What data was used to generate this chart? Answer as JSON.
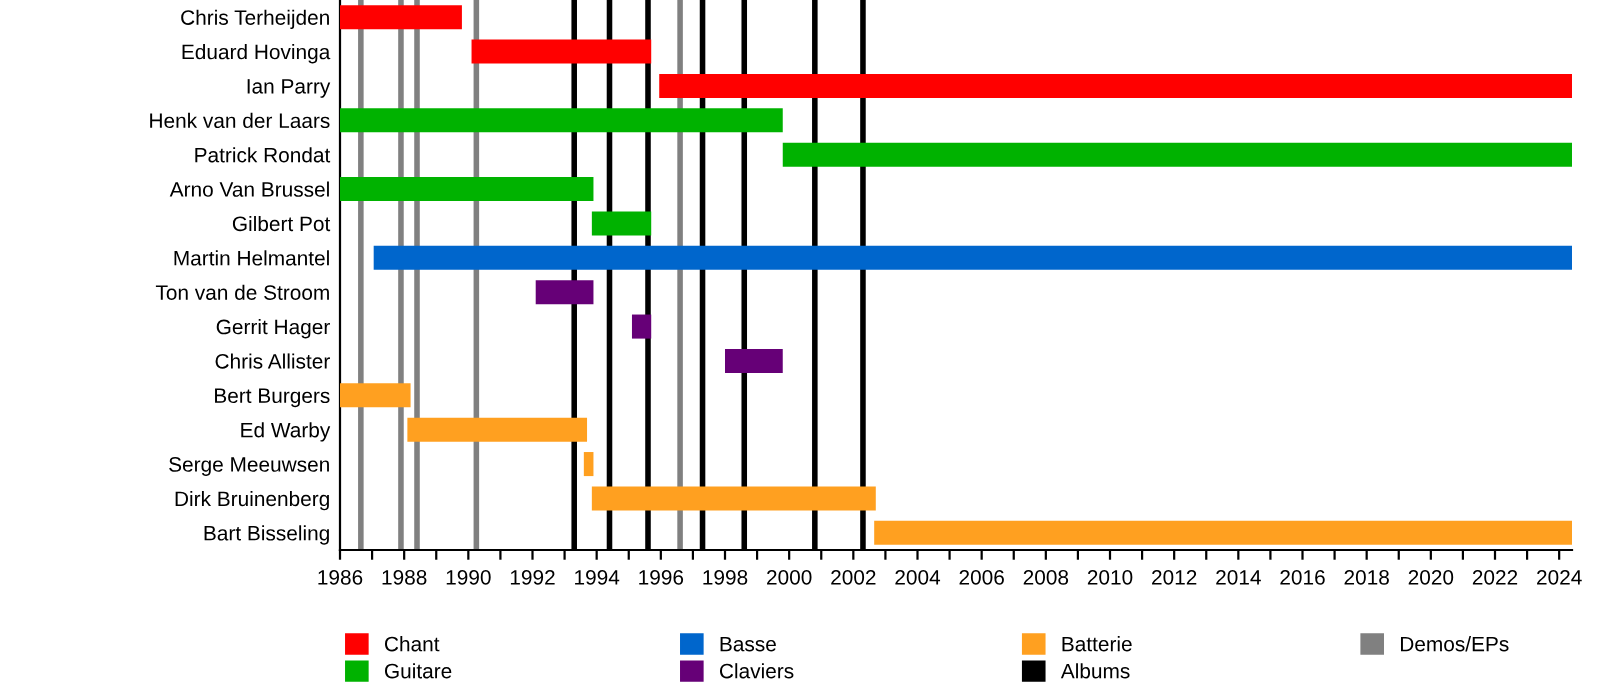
{
  "chart_data": {
    "type": "bar",
    "orientation": "horizontal",
    "legend": "bottom",
    "grid": false,
    "categories": [
      "Chris Terheijden",
      "Eduard Hovinga",
      "Ian Parry",
      "Henk van der Laars",
      "Patrick Rondat",
      "Arno Van Brussel",
      "Gilbert Pot",
      "Martin Helmantel",
      "Ton van de Stroom",
      "Gerrit Hager",
      "Chris Allister",
      "Bert Burgers",
      "Ed Warby",
      "Serge Meeuwsen",
      "Dirk Bruinenberg",
      "Bart Bisseling"
    ],
    "series": [
      {
        "name": "Chant",
        "color": "#ff0000",
        "base": [
          1986,
          1990.1,
          1995.95,
          null,
          null,
          null,
          null,
          null,
          null,
          null,
          null,
          null,
          null,
          null,
          null,
          null
        ],
        "values": [
          3.8,
          5.6,
          28.45,
          null,
          null,
          null,
          null,
          null,
          null,
          null,
          null,
          null,
          null,
          null,
          null,
          null
        ]
      },
      {
        "name": "Guitare",
        "color": "#00b200",
        "base": [
          null,
          null,
          null,
          1986,
          1999.8,
          1986,
          1993.85,
          null,
          null,
          null,
          null,
          null,
          null,
          null,
          null,
          null
        ],
        "values": [
          null,
          null,
          null,
          13.8,
          24.6,
          7.9,
          1.85,
          null,
          null,
          null,
          null,
          null,
          null,
          null,
          null,
          null
        ]
      },
      {
        "name": "Basse",
        "color": "#0066cc",
        "base": [
          null,
          null,
          null,
          null,
          null,
          null,
          null,
          1987.05,
          null,
          null,
          null,
          null,
          null,
          null,
          null,
          null
        ],
        "values": [
          null,
          null,
          null,
          null,
          null,
          null,
          null,
          37.35,
          null,
          null,
          null,
          null,
          null,
          null,
          null,
          null
        ]
      },
      {
        "name": "Claviers",
        "color": "#660077",
        "base": [
          null,
          null,
          null,
          null,
          null,
          null,
          null,
          null,
          1992.1,
          1995.1,
          1998.0,
          null,
          null,
          null,
          null,
          null
        ],
        "values": [
          null,
          null,
          null,
          null,
          null,
          null,
          null,
          null,
          1.8,
          0.6,
          1.8,
          null,
          null,
          null,
          null,
          null
        ]
      },
      {
        "name": "Batterie",
        "color": "#ffa020",
        "base": [
          null,
          null,
          null,
          null,
          null,
          null,
          null,
          null,
          null,
          null,
          null,
          1986,
          1988.1,
          1993.6,
          1993.85,
          2002.65
        ],
        "values": [
          null,
          null,
          null,
          null,
          null,
          null,
          null,
          null,
          null,
          null,
          null,
          2.2,
          5.6,
          0.3,
          8.85,
          21.75
        ]
      }
    ],
    "ref_lines": [
      {
        "axis": "x",
        "value": 1993.3,
        "label": "Albums",
        "color": "#000000"
      },
      {
        "axis": "x",
        "value": 1994.4,
        "color": "#000000"
      },
      {
        "axis": "x",
        "value": 1995.6,
        "color": "#000000"
      },
      {
        "axis": "x",
        "value": 1997.3,
        "color": "#000000"
      },
      {
        "axis": "x",
        "value": 1998.6,
        "color": "#000000"
      },
      {
        "axis": "x",
        "value": 2000.8,
        "color": "#000000"
      },
      {
        "axis": "x",
        "value": 2002.3,
        "color": "#000000"
      },
      {
        "axis": "x",
        "value": 1986.65,
        "label": "Demos/EPs",
        "color": "#808080"
      },
      {
        "axis": "x",
        "value": 1987.9,
        "color": "#808080"
      },
      {
        "axis": "x",
        "value": 1988.4,
        "color": "#808080"
      },
      {
        "axis": "x",
        "value": 1990.25,
        "color": "#808080"
      },
      {
        "axis": "x",
        "value": 1996.6,
        "color": "#808080"
      }
    ],
    "xlim": [
      1986,
      2024.4
    ],
    "xticks": [
      1986,
      {
        "value": 1987,
        "label": null
      },
      1988,
      {
        "value": 1989,
        "label": null
      },
      1990,
      {
        "value": 1991,
        "label": null
      },
      1992,
      {
        "value": 1993,
        "label": null
      },
      1994,
      {
        "value": 1995,
        "label": null
      },
      1996,
      {
        "value": 1997,
        "label": null
      },
      1998,
      {
        "value": 1999,
        "label": null
      },
      2000,
      {
        "value": 2001,
        "label": null
      },
      2002,
      {
        "value": 2003,
        "label": null
      },
      2004,
      {
        "value": 2005,
        "label": null
      },
      2006,
      {
        "value": 2007,
        "label": null
      },
      2008,
      {
        "value": 2009,
        "label": null
      },
      2010,
      {
        "value": 2011,
        "label": null
      },
      2012,
      {
        "value": 2013,
        "label": null
      },
      2014,
      {
        "value": 2015,
        "label": null
      },
      2016,
      {
        "value": 2017,
        "label": null
      },
      2018,
      {
        "value": 2019,
        "label": null
      },
      2020,
      {
        "value": 2021,
        "label": null
      },
      2022,
      {
        "value": 2023,
        "label": null
      },
      2024
    ]
  }
}
